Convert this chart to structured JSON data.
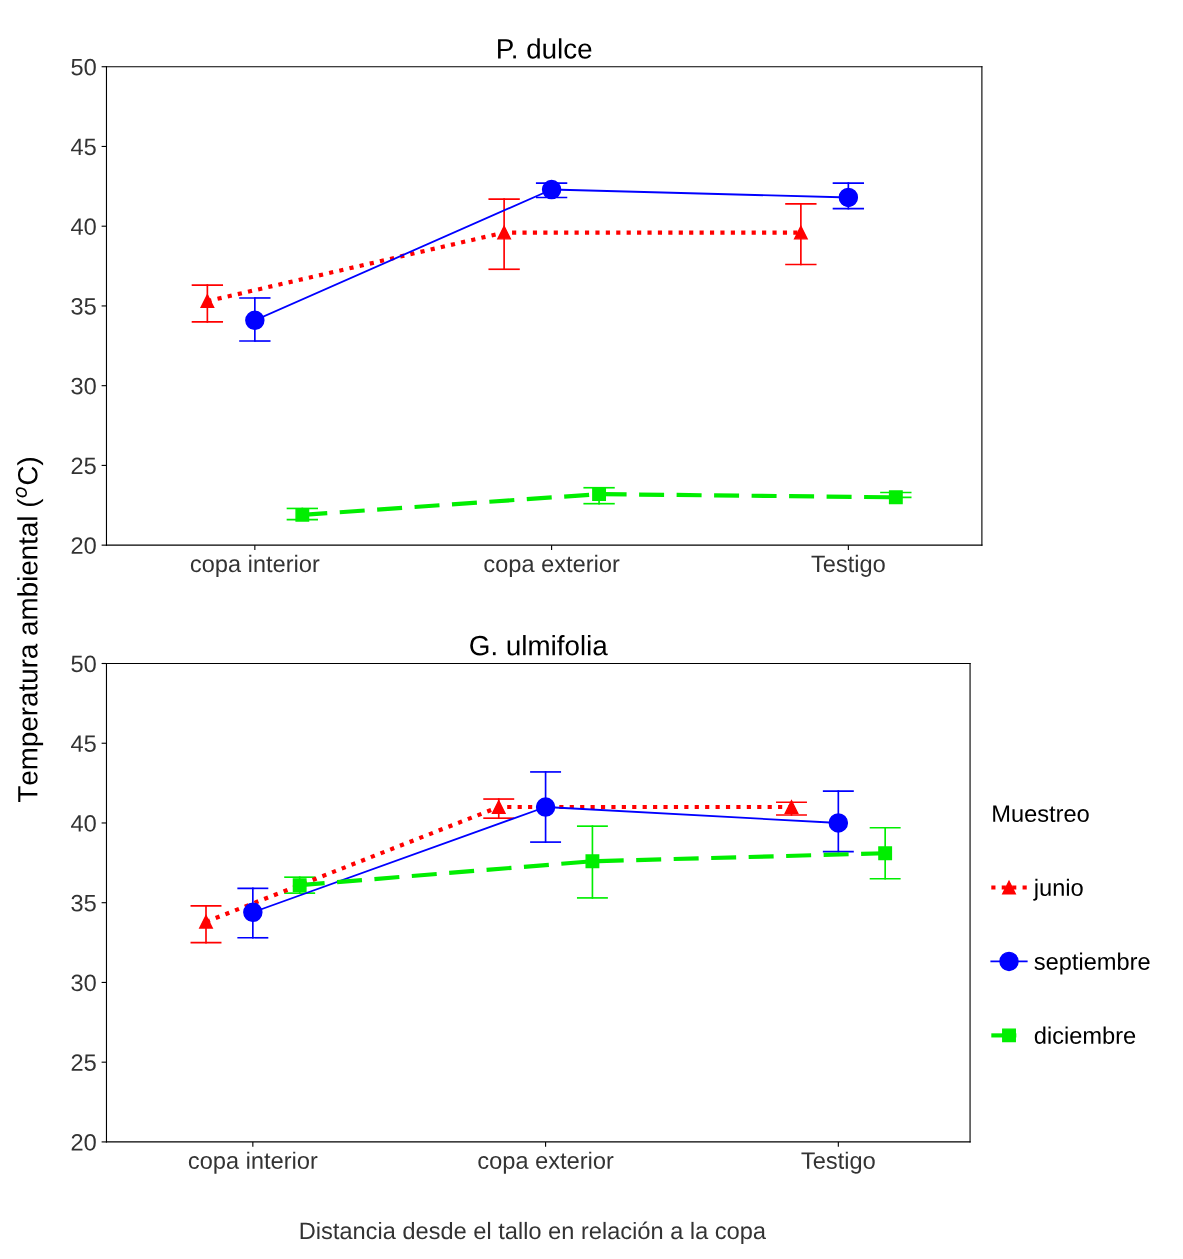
{
  "chart_data": [
    {
      "type": "line",
      "title": "P. dulce",
      "ylabel": "Temperatura ambiental ($^{o}$C)",
      "categories": [
        "copa interior",
        "copa exterior",
        "Testigo"
      ],
      "ylim": [
        20,
        50
      ],
      "yticks": [
        20,
        25,
        30,
        35,
        40,
        45,
        50
      ],
      "grid": false,
      "series": [
        {
          "color": "#ff0000",
          "marker": "triangle",
          "line_style": "dotted",
          "values": [
            35.3,
            39.6,
            39.6
          ],
          "errors": [
            [
              34.0,
              36.3
            ],
            [
              37.3,
              41.7
            ],
            [
              37.6,
              41.4
            ]
          ]
        },
        {
          "color": "#0000ff",
          "marker": "circle",
          "line_style": "solid",
          "values": [
            34.1,
            42.3,
            41.8
          ],
          "errors": [
            [
              32.8,
              35.5
            ],
            [
              41.8,
              42.7
            ],
            [
              41.1,
              42.7
            ]
          ]
        },
        {
          "color": "#00ee00",
          "marker": "square",
          "line_style": "dashed",
          "values": [
            21.9,
            23.2,
            23.0
          ],
          "errors": [
            [
              21.6,
              22.3
            ],
            [
              22.6,
              23.6
            ],
            [
              23.0,
              23.3
            ]
          ]
        }
      ]
    },
    {
      "type": "line",
      "title": "G. ulmifolia",
      "xlabel": "Distancia desde el tallo en relación a la copa",
      "legend_title": "Muestreo",
      "legend": "right",
      "categories": [
        "copa interior",
        "copa exterior",
        "Testigo"
      ],
      "ylim": [
        20,
        50
      ],
      "yticks": [
        20,
        25,
        30,
        35,
        40,
        45,
        50
      ],
      "grid": false,
      "series": [
        {
          "name": "junio",
          "color": "#ff0000",
          "marker": "triangle",
          "line_style": "dotted",
          "values": [
            33.8,
            41.0,
            41.0
          ],
          "errors": [
            [
              32.5,
              34.8
            ],
            [
              40.3,
              41.5
            ],
            [
              40.5,
              41.3
            ]
          ]
        },
        {
          "name": "septiembre",
          "color": "#0000ff",
          "marker": "circle",
          "line_style": "solid",
          "values": [
            34.4,
            41.0,
            40.0
          ],
          "errors": [
            [
              32.8,
              35.9
            ],
            [
              38.8,
              43.2
            ],
            [
              38.2,
              42.0
            ]
          ]
        },
        {
          "name": "diciembre",
          "color": "#00ee00",
          "marker": "square",
          "line_style": "dashed",
          "values": [
            36.1,
            37.6,
            38.1
          ],
          "errors": [
            [
              35.6,
              36.6
            ],
            [
              35.3,
              39.8
            ],
            [
              36.5,
              39.7
            ]
          ]
        }
      ]
    }
  ]
}
